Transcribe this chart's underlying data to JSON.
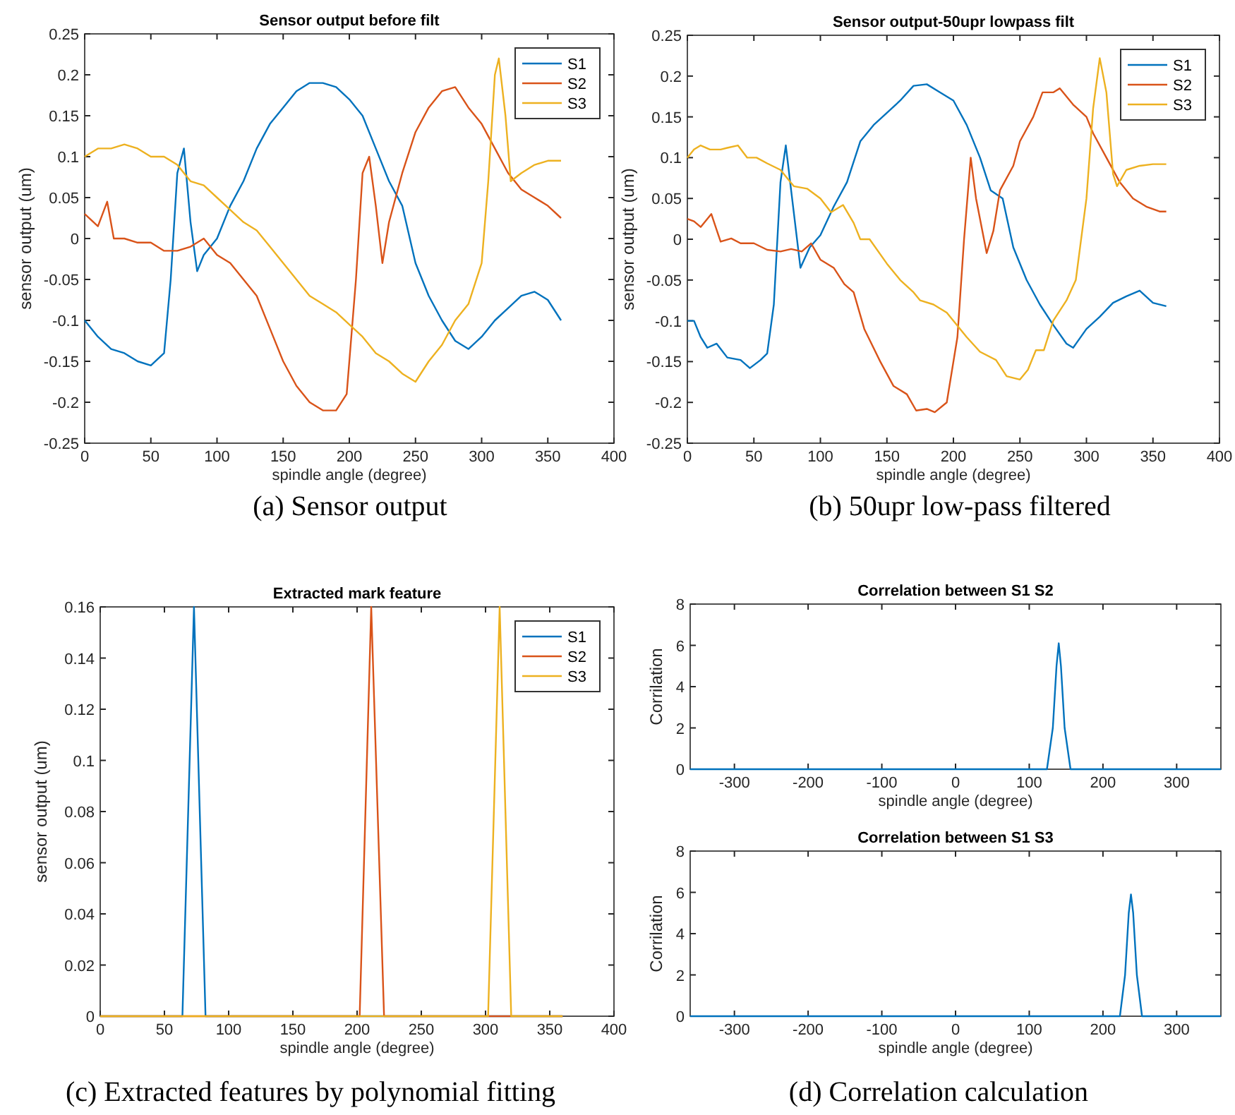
{
  "chart_data": [
    {
      "type": "line",
      "title": "Sensor output before filt",
      "xlabel": "spindle angle (degree)",
      "ylabel": "sensor output (um)",
      "xlim": [
        0,
        400
      ],
      "xticks": [
        0,
        50,
        100,
        150,
        200,
        250,
        300,
        350,
        400
      ],
      "ylim": [
        -0.25,
        0.25
      ],
      "yticks": [
        -0.25,
        -0.2,
        -0.15,
        -0.1,
        -0.05,
        0,
        0.05,
        0.1,
        0.15,
        0.2,
        0.25
      ],
      "legend": "top right",
      "grid": false,
      "annotations": [
        "(a) Sensor output"
      ],
      "series": [
        {
          "name": "S1",
          "color": "#0072bd",
          "x": [
            0,
            10,
            20,
            30,
            40,
            50,
            60,
            65,
            70,
            75,
            80,
            85,
            90,
            100,
            110,
            120,
            130,
            140,
            150,
            160,
            170,
            180,
            190,
            200,
            210,
            220,
            230,
            240,
            250,
            260,
            270,
            280,
            290,
            300,
            310,
            320,
            330,
            340,
            350,
            360
          ],
          "values": [
            -0.1,
            -0.12,
            -0.135,
            -0.14,
            -0.15,
            -0.155,
            -0.14,
            -0.05,
            0.08,
            0.11,
            0.02,
            -0.04,
            -0.02,
            0.0,
            0.04,
            0.07,
            0.11,
            0.14,
            0.16,
            0.18,
            0.19,
            0.19,
            0.185,
            0.17,
            0.15,
            0.11,
            0.07,
            0.04,
            -0.03,
            -0.07,
            -0.1,
            -0.125,
            -0.135,
            -0.12,
            -0.1,
            -0.085,
            -0.07,
            -0.065,
            -0.075,
            -0.1
          ]
        },
        {
          "name": "S2",
          "color": "#d95319",
          "x": [
            0,
            10,
            17,
            22,
            30,
            40,
            50,
            60,
            70,
            80,
            90,
            100,
            110,
            120,
            130,
            140,
            150,
            160,
            170,
            180,
            190,
            198,
            205,
            210,
            215,
            220,
            225,
            230,
            240,
            250,
            260,
            270,
            280,
            290,
            300,
            310,
            320,
            330,
            340,
            350,
            360
          ],
          "values": [
            0.03,
            0.015,
            0.045,
            0.0,
            0.0,
            -0.005,
            -0.005,
            -0.015,
            -0.015,
            -0.01,
            0.0,
            -0.02,
            -0.03,
            -0.05,
            -0.07,
            -0.11,
            -0.15,
            -0.18,
            -0.2,
            -0.21,
            -0.21,
            -0.19,
            -0.05,
            0.08,
            0.1,
            0.04,
            -0.03,
            0.02,
            0.08,
            0.13,
            0.16,
            0.18,
            0.185,
            0.16,
            0.14,
            0.11,
            0.08,
            0.06,
            0.05,
            0.04,
            0.025
          ]
        },
        {
          "name": "S3",
          "color": "#edb120",
          "x": [
            0,
            10,
            20,
            30,
            40,
            50,
            60,
            70,
            80,
            90,
            100,
            110,
            120,
            130,
            140,
            150,
            160,
            170,
            180,
            190,
            200,
            210,
            220,
            230,
            240,
            250,
            260,
            270,
            280,
            290,
            300,
            305,
            310,
            313,
            318,
            322,
            330,
            340,
            350,
            360
          ],
          "values": [
            0.1,
            0.11,
            0.11,
            0.115,
            0.11,
            0.1,
            0.1,
            0.09,
            0.07,
            0.065,
            0.05,
            0.035,
            0.02,
            0.01,
            -0.01,
            -0.03,
            -0.05,
            -0.07,
            -0.08,
            -0.09,
            -0.105,
            -0.12,
            -0.14,
            -0.15,
            -0.165,
            -0.175,
            -0.15,
            -0.13,
            -0.1,
            -0.08,
            -0.03,
            0.07,
            0.2,
            0.22,
            0.15,
            0.07,
            0.08,
            0.09,
            0.095,
            0.095
          ]
        }
      ]
    },
    {
      "type": "line",
      "title": "Sensor output-50upr lowpass filt",
      "xlabel": "spindle angle (degree)",
      "ylabel": "sensor output (um)",
      "xlim": [
        0,
        400
      ],
      "xticks": [
        0,
        50,
        100,
        150,
        200,
        250,
        300,
        350,
        400
      ],
      "ylim": [
        -0.25,
        0.25
      ],
      "yticks": [
        -0.25,
        -0.2,
        -0.15,
        -0.1,
        -0.05,
        0,
        0.05,
        0.1,
        0.15,
        0.2,
        0.25
      ],
      "legend": "top right",
      "grid": false,
      "annotations": [
        "(b) 50upr low-pass filtered"
      ],
      "series": [
        {
          "name": "S1",
          "color": "#0072bd",
          "x": [
            0,
            5,
            10,
            15,
            22,
            30,
            40,
            47,
            55,
            60,
            65,
            70,
            74,
            78,
            85,
            92,
            100,
            110,
            120,
            130,
            140,
            150,
            160,
            170,
            180,
            190,
            200,
            210,
            220,
            228,
            237,
            245,
            255,
            265,
            275,
            285,
            290,
            300,
            310,
            320,
            330,
            340,
            350,
            360
          ],
          "values": [
            -0.1,
            -0.1,
            -0.12,
            -0.133,
            -0.128,
            -0.145,
            -0.148,
            -0.158,
            -0.148,
            -0.14,
            -0.08,
            0.07,
            0.115,
            0.06,
            -0.035,
            -0.01,
            0.005,
            0.04,
            0.07,
            0.12,
            0.14,
            0.155,
            0.17,
            0.188,
            0.19,
            0.18,
            0.17,
            0.14,
            0.1,
            0.06,
            0.05,
            -0.01,
            -0.05,
            -0.08,
            -0.105,
            -0.128,
            -0.133,
            -0.11,
            -0.095,
            -0.078,
            -0.07,
            -0.063,
            -0.078,
            -0.082
          ]
        },
        {
          "name": "S2",
          "color": "#d95319",
          "x": [
            0,
            5,
            10,
            18,
            25,
            33,
            40,
            50,
            60,
            70,
            78,
            86,
            93,
            100,
            110,
            118,
            125,
            133,
            145,
            155,
            165,
            172,
            180,
            186,
            195,
            203,
            208,
            213,
            217,
            225,
            230,
            235,
            245,
            250,
            260,
            267,
            275,
            280,
            290,
            300,
            305,
            315,
            325,
            335,
            345,
            355,
            360
          ],
          "values": [
            0.025,
            0.022,
            0.015,
            0.031,
            -0.003,
            0.001,
            -0.005,
            -0.005,
            -0.013,
            -0.015,
            -0.012,
            -0.015,
            -0.005,
            -0.025,
            -0.035,
            -0.055,
            -0.065,
            -0.11,
            -0.15,
            -0.18,
            -0.19,
            -0.21,
            -0.208,
            -0.212,
            -0.2,
            -0.12,
            0.0,
            0.1,
            0.05,
            -0.017,
            0.01,
            0.06,
            0.09,
            0.12,
            0.15,
            0.18,
            0.18,
            0.185,
            0.165,
            0.15,
            0.13,
            0.1,
            0.07,
            0.05,
            0.04,
            0.034,
            0.034
          ]
        },
        {
          "name": "S3",
          "color": "#edb120",
          "x": [
            0,
            5,
            10,
            17,
            25,
            30,
            38,
            45,
            52,
            60,
            70,
            80,
            90,
            100,
            108,
            117,
            125,
            130,
            137,
            150,
            160,
            170,
            175,
            185,
            195,
            210,
            220,
            232,
            240,
            250,
            256,
            262,
            268,
            275,
            285,
            292,
            300,
            305,
            310,
            315,
            320,
            323,
            330,
            340,
            350,
            360
          ],
          "values": [
            0.1,
            0.11,
            0.115,
            0.11,
            0.11,
            0.112,
            0.115,
            0.1,
            0.1,
            0.093,
            0.085,
            0.065,
            0.062,
            0.05,
            0.033,
            0.042,
            0.02,
            0.0,
            0.0,
            -0.03,
            -0.05,
            -0.065,
            -0.075,
            -0.08,
            -0.09,
            -0.12,
            -0.138,
            -0.148,
            -0.168,
            -0.172,
            -0.16,
            -0.136,
            -0.136,
            -0.1,
            -0.075,
            -0.05,
            0.05,
            0.16,
            0.222,
            0.18,
            0.08,
            0.065,
            0.085,
            0.09,
            0.092,
            0.092
          ]
        }
      ]
    },
    {
      "type": "line",
      "title": "Extracted mark feature",
      "xlabel": "spindle angle (degree)",
      "ylabel": "sensor output (um)",
      "xlim": [
        0,
        400
      ],
      "xticks": [
        0,
        50,
        100,
        150,
        200,
        250,
        300,
        350,
        400
      ],
      "ylim": [
        0,
        0.16
      ],
      "yticks": [
        0,
        0.02,
        0.04,
        0.06,
        0.08,
        0.1,
        0.12,
        0.14,
        0.16
      ],
      "legend": "top right",
      "grid": false,
      "annotations": [
        "(c) Extracted features by polynomial fitting"
      ],
      "series": [
        {
          "name": "S1",
          "color": "#0072bd",
          "x": [
            0,
            64,
            73,
            82,
            360
          ],
          "values": [
            0,
            0,
            0.16,
            0,
            0
          ]
        },
        {
          "name": "S2",
          "color": "#d95319",
          "x": [
            0,
            202,
            211,
            221,
            360
          ],
          "values": [
            0,
            0,
            0.16,
            0,
            0
          ]
        },
        {
          "name": "S3",
          "color": "#edb120",
          "x": [
            0,
            302,
            311,
            320,
            360
          ],
          "values": [
            0,
            0,
            0.16,
            0,
            0
          ]
        }
      ]
    },
    {
      "type": "line",
      "title": "Correlation between S1 S2",
      "xlabel": "spindle angle (degree)",
      "ylabel": "Corrilation",
      "xlim": [
        -360,
        360
      ],
      "xticks": [
        -300,
        -200,
        -100,
        0,
        100,
        200,
        300
      ],
      "ylim": [
        0,
        8
      ],
      "yticks": [
        0,
        2,
        4,
        6,
        8
      ],
      "grid": false,
      "series": [
        {
          "color": "#0072bd",
          "x": [
            -360,
            124,
            132,
            137,
            140,
            143,
            148,
            156,
            360
          ],
          "values": [
            0,
            0,
            2,
            5,
            6.1,
            5,
            2,
            0,
            0
          ]
        }
      ]
    },
    {
      "type": "line",
      "title": "Correlation between S1 S3",
      "xlabel": "spindle angle (degree)",
      "ylabel": "Corrilation",
      "xlim": [
        -360,
        360
      ],
      "xticks": [
        -300,
        -200,
        -100,
        0,
        100,
        200,
        300
      ],
      "ylim": [
        0,
        8
      ],
      "yticks": [
        0,
        2,
        4,
        6,
        8
      ],
      "grid": false,
      "annotations": [
        "(d) Correlation calculation"
      ],
      "series": [
        {
          "color": "#0072bd",
          "x": [
            -360,
            223,
            230,
            235,
            238,
            241,
            246,
            253,
            360
          ],
          "values": [
            0,
            0,
            2,
            5,
            5.9,
            5,
            2,
            0,
            0
          ]
        }
      ]
    }
  ]
}
